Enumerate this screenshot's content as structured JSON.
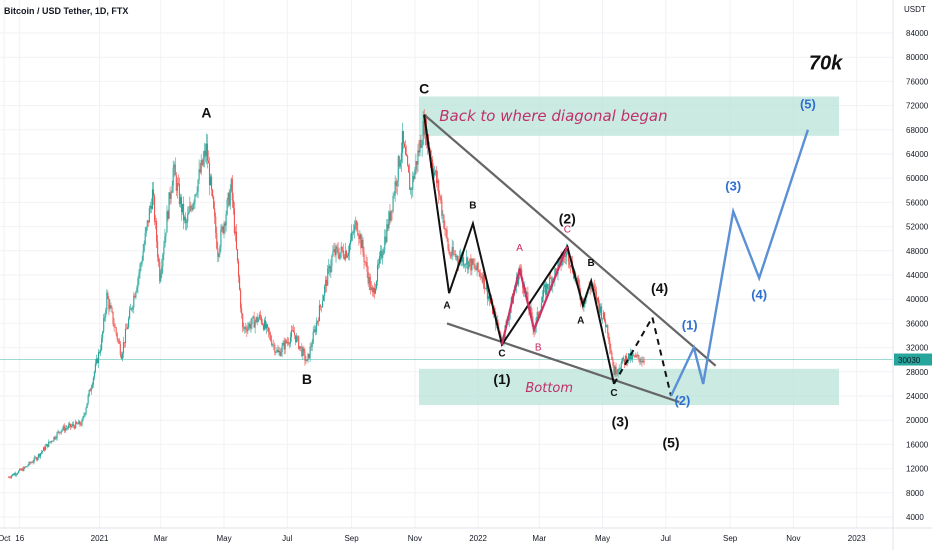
{
  "chart_data": {
    "type": "candlestick",
    "title": "Bitcoin / USD Tether, 1D, FTX",
    "currency": "USDT",
    "price_tag": "30030",
    "y_ticks": [
      "84000",
      "80000",
      "76000",
      "72000",
      "68000",
      "64000",
      "60000",
      "56000",
      "52000",
      "48000",
      "44000",
      "40000",
      "36000",
      "32000",
      "28000",
      "24000",
      "20000",
      "16000",
      "12000",
      "8000",
      "4000"
    ],
    "x_ticks": [
      "Oct",
      "16",
      "2021",
      "Mar",
      "May",
      "Jul",
      "Sep",
      "Nov",
      "2022",
      "Mar",
      "May",
      "Jul",
      "Sep",
      "Nov",
      "2023"
    ],
    "ylim": [
      0,
      90000
    ],
    "colors": {
      "up": "#26a69a",
      "down": "#ef5350",
      "wave": "#111111",
      "sub_wave": "#d03264",
      "projection": "#5b8fd6",
      "trendline": "#666666",
      "zone": "#b8e3d8"
    },
    "price_path": [
      [
        "2020-10-05",
        10600
      ],
      [
        "2020-10-20",
        12000
      ],
      [
        "2020-11-01",
        13800
      ],
      [
        "2020-11-25",
        18500
      ],
      [
        "2020-12-15",
        19500
      ],
      [
        "2021-01-03",
        33000
      ],
      [
        "2021-01-08",
        40500
      ],
      [
        "2021-01-22",
        31000
      ],
      [
        "2021-02-10",
        46000
      ],
      [
        "2021-02-21",
        57500
      ],
      [
        "2021-02-28",
        44000
      ],
      [
        "2021-03-13",
        61500
      ],
      [
        "2021-03-25",
        52000
      ],
      [
        "2021-04-14",
        64800
      ],
      [
        "2021-04-25",
        48000
      ],
      [
        "2021-05-08",
        58500
      ],
      [
        "2021-05-19",
        35000
      ],
      [
        "2021-06-05",
        37000
      ],
      [
        "2021-06-22",
        31000
      ],
      [
        "2021-07-07",
        34500
      ],
      [
        "2021-07-20",
        29500
      ],
      [
        "2021-08-14",
        47500
      ],
      [
        "2021-08-28",
        48000
      ],
      [
        "2021-09-06",
        52700
      ],
      [
        "2021-09-21",
        40500
      ],
      [
        "2021-10-08",
        54000
      ],
      [
        "2021-10-20",
        66000
      ],
      [
        "2021-10-28",
        58000
      ],
      [
        "2021-11-10",
        69000
      ],
      [
        "2021-11-25",
        57000
      ],
      [
        "2021-12-04",
        47500
      ],
      [
        "2021-12-20",
        46500
      ],
      [
        "2022-01-05",
        44000
      ],
      [
        "2022-01-24",
        33000
      ],
      [
        "2022-02-10",
        45000
      ],
      [
        "2022-02-24",
        35000
      ],
      [
        "2022-03-05",
        41000
      ],
      [
        "2022-03-28",
        48000
      ],
      [
        "2022-04-12",
        39500
      ],
      [
        "2022-04-20",
        42500
      ],
      [
        "2022-05-06",
        35000
      ],
      [
        "2022-05-12",
        28000
      ],
      [
        "2022-05-25",
        30500
      ],
      [
        "2022-06-10",
        30000
      ]
    ],
    "annotations": {
      "cycle_labels": [
        {
          "text": "A",
          "date": "2021-04-14",
          "price": 70000
        },
        {
          "text": "B",
          "date": "2021-07-20",
          "price": 26000
        },
        {
          "text": "C",
          "date": "2021-11-10",
          "price": 74000
        }
      ],
      "diagonal_labels": [
        {
          "text": "(1)",
          "date": "2022-01-24",
          "price": 26000
        },
        {
          "text": "(2)",
          "date": "2022-03-28",
          "price": 52500
        },
        {
          "text": "(3)",
          "date": "2022-05-18",
          "price": 19000
        },
        {
          "text": "(4)",
          "date": "2022-06-25",
          "price": 41000
        },
        {
          "text": "(5)",
          "date": "2022-07-06",
          "price": 15500
        }
      ],
      "wave_path": [
        [
          "2021-11-10",
          70500
        ],
        [
          "2021-12-04",
          41000
        ],
        [
          "2021-12-27",
          52500
        ],
        [
          "2022-01-24",
          32500
        ],
        [
          "2022-03-28",
          48700
        ],
        [
          "2022-04-12",
          39000
        ],
        [
          "2022-04-20",
          43000
        ],
        [
          "2022-05-12",
          26000
        ]
      ],
      "wave_labels_small": [
        {
          "text": "A",
          "date": "2021-12-02",
          "price": 38500
        },
        {
          "text": "B",
          "date": "2021-12-27",
          "price": 55000
        },
        {
          "text": "C",
          "date": "2022-01-24",
          "price": 30500
        },
        {
          "text": "A",
          "date": "2022-04-10",
          "price": 36000
        },
        {
          "text": "B",
          "date": "2022-04-20",
          "price": 45500
        },
        {
          "text": "C",
          "date": "2022-05-12",
          "price": 24000
        }
      ],
      "sub_wave_path": [
        [
          "2022-01-24",
          32500
        ],
        [
          "2022-02-10",
          45000
        ],
        [
          "2022-02-24",
          35000
        ],
        [
          "2022-03-28",
          48700
        ]
      ],
      "sub_wave_labels": [
        {
          "text": "A",
          "date": "2022-02-10",
          "price": 48000
        },
        {
          "text": "B",
          "date": "2022-02-28",
          "price": 31500
        },
        {
          "text": "C",
          "date": "2022-03-28",
          "price": 51000
        }
      ],
      "dashed_path": [
        [
          "2022-05-12",
          26000
        ],
        [
          "2022-06-18",
          37000
        ],
        [
          "2022-07-06",
          24000
        ]
      ],
      "projection_path": [
        [
          "2022-07-06",
          24000
        ],
        [
          "2022-07-28",
          32000
        ],
        [
          "2022-08-06",
          26000
        ],
        [
          "2022-09-04",
          54500
        ],
        [
          "2022-09-29",
          43500
        ],
        [
          "2022-11-15",
          68000
        ]
      ],
      "projection_labels": [
        {
          "text": "(1)",
          "date": "2022-07-24",
          "price": 35000
        },
        {
          "text": "(2)",
          "date": "2022-07-17",
          "price": 22500
        },
        {
          "text": "(3)",
          "date": "2022-09-04",
          "price": 58000
        },
        {
          "text": "(4)",
          "date": "2022-09-29",
          "price": 40000
        },
        {
          "text": "(5)",
          "date": "2022-11-15",
          "price": 71500
        }
      ],
      "upper_trendline": [
        [
          "2021-11-10",
          70500
        ],
        [
          "2022-08-18",
          29000
        ]
      ],
      "lower_trendline": [
        [
          "2021-12-02",
          36000
        ],
        [
          "2022-07-14",
          23000
        ]
      ],
      "top_zone": {
        "from": "2021-11-05",
        "to": "2022-12-15",
        "low": 67000,
        "high": 73500,
        "label": "Back to where diagonal began"
      },
      "bottom_zone": {
        "from": "2021-11-05",
        "to": "2022-12-15",
        "low": 22500,
        "high": 28500,
        "label": "Bottom"
      },
      "target_text": "70k",
      "target_date": "2022-12-02",
      "target_price": 78000
    }
  }
}
